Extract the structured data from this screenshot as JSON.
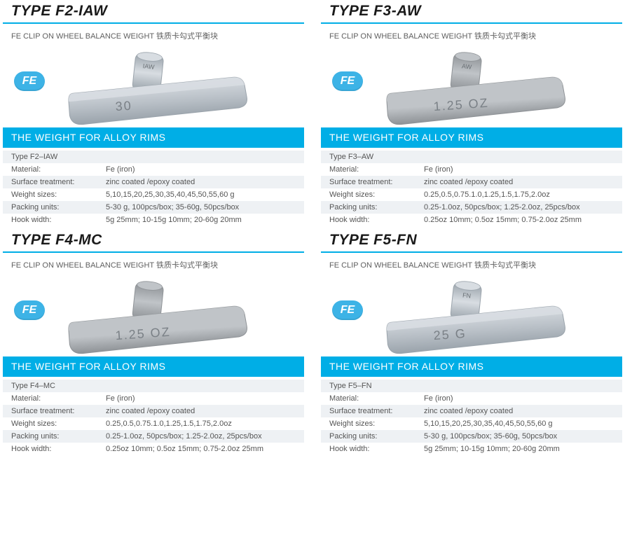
{
  "colors": {
    "accent": "#00aee6",
    "badge": "#3db3e6",
    "title": "#1a1a1a",
    "text": "#606060",
    "row_alt": "#eef1f4",
    "row": "#ffffff",
    "steel_light": "#d8dde2",
    "steel_dark": "#9aa3ab",
    "steel_mid": "#b8bfc6",
    "grey_light": "#c0c4c8",
    "grey_dark": "#8e9296"
  },
  "cards": [
    {
      "title": "TYPE F2-IAW",
      "subtitle": "FE CLIP ON WHEEL BALANCE WEIGHT 铁质卡勾式平衡块",
      "fe": "FE",
      "band": "THE WEIGHT FOR ALLOY RIMS",
      "weight_style": "steel",
      "weight_label": "30",
      "clip_label": "IAW",
      "rows": [
        [
          "Type F2–IAW",
          ""
        ],
        [
          "Material:",
          "Fe (iron)"
        ],
        [
          "Surface treatment:",
          "zinc coated /epoxy coated"
        ],
        [
          "Weight sizes:",
          "5,10,15,20,25,30,35,40,45,50,55,60 g"
        ],
        [
          "Packing units:",
          "5-30 g, 100pcs/box; 35-60g, 50pcs/box"
        ],
        [
          "Hook width:",
          " 5g 25mm; 10-15g 10mm; 20-60g 20mm"
        ]
      ]
    },
    {
      "title": "TYPE F3-AW",
      "subtitle": "FE CLIP ON WHEEL BALANCE WEIGHT 铁质卡勾式平衡块",
      "fe": "FE",
      "band": "THE WEIGHT FOR ALLOY RIMS",
      "weight_style": "grey",
      "weight_label": "1.25 OZ",
      "clip_label": "AW",
      "rows": [
        [
          "Type F3–AW",
          ""
        ],
        [
          "Material:",
          "Fe (iron)"
        ],
        [
          "Surface treatment:",
          "zinc coated /epoxy coated"
        ],
        [
          "Weight sizes:",
          "0.25,0.5,0.75.1.0,1.25,1.5,1.75,2.0oz"
        ],
        [
          "Packing units:",
          " 0.25-1.0oz, 50pcs/box; 1.25-2.0oz, 25pcs/box"
        ],
        [
          "Hook width:",
          "0.25oz 10mm; 0.5oz 15mm; 0.75-2.0oz 25mm"
        ]
      ]
    },
    {
      "title": "TYPE F4-MC",
      "subtitle": "FE CLIP ON WHEEL BALANCE WEIGHT 铁质卡勾式平衡块",
      "fe": "FE",
      "band": "THE WEIGHT FOR ALLOY RIMS",
      "weight_style": "grey",
      "weight_label": "1.25  OZ",
      "clip_label": "",
      "rows": [
        [
          "Type F4–MC",
          ""
        ],
        [
          "Material:",
          " Fe (iron)"
        ],
        [
          "Surface treatment:",
          "zinc coated /epoxy coated"
        ],
        [
          "Weight sizes:",
          "0.25,0.5,0.75.1.0,1.25,1.5,1.75,2.0oz"
        ],
        [
          "Packing units:",
          " 0.25-1.0oz, 50pcs/box; 1.25-2.0oz, 25pcs/box"
        ],
        [
          "Hook width:",
          "0.25oz 10mm; 0.5oz 15mm; 0.75-2.0oz 25mm"
        ]
      ]
    },
    {
      "title": "TYPE F5-FN",
      "subtitle": "FE CLIP ON WHEEL BALANCE WEIGHT 铁质卡勾式平衡块",
      "fe": "FE",
      "band": "THE WEIGHT FOR ALLOY RIMS",
      "weight_style": "steel",
      "weight_label": "25 G",
      "clip_label": "FN",
      "rows": [
        [
          "Type F5–FN",
          ""
        ],
        [
          "Material:",
          "Fe (iron)"
        ],
        [
          "Surface treatment:",
          "zinc coated /epoxy coated"
        ],
        [
          "Weight sizes:",
          "5,10,15,20,25,30,35,40,45,50,55,60 g"
        ],
        [
          "Packing units:",
          "5-30 g, 100pcs/box; 35-60g, 50pcs/box"
        ],
        [
          "Hook width:",
          " 5g 25mm; 10-15g 10mm; 20-60g 20mm"
        ]
      ]
    }
  ]
}
